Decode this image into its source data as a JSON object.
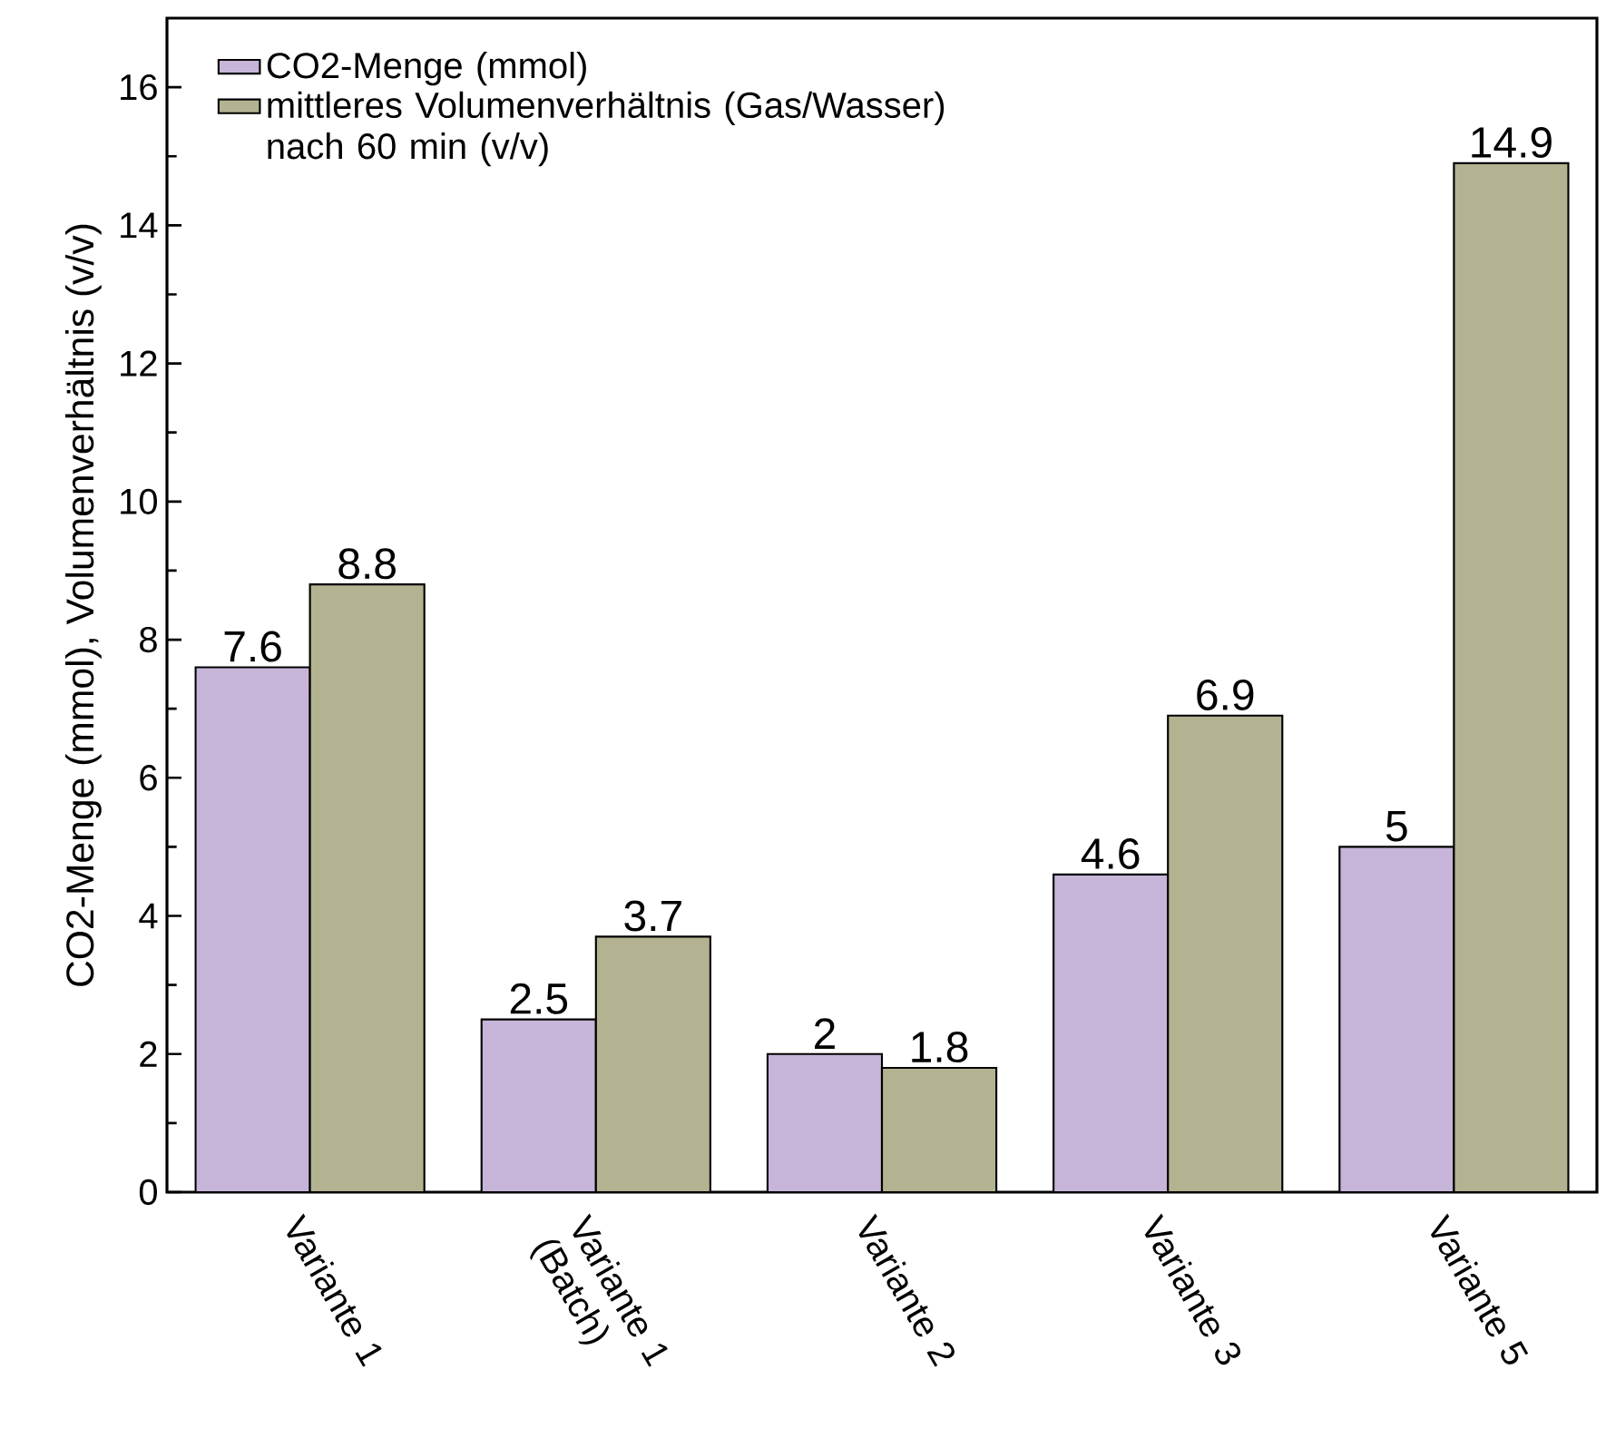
{
  "chart_data": {
    "type": "bar",
    "ylabel": "CO2-Menge (mmol), Volumenverhältnis (v/v)",
    "categories": [
      "Variante 1",
      "Variante 1 (Batch)",
      "Variante 2",
      "Variante 3",
      "Variante 5"
    ],
    "series": [
      {
        "name": "CO2-Menge (mmol)",
        "color": "#c6b5d9",
        "values": [
          7.6,
          2.5,
          2,
          4.6,
          5
        ]
      },
      {
        "name": "mittleres Volumenverhältnis (Gas/Wasser) nach 60 min (v/v)",
        "color": "#b3b392",
        "values": [
          8.8,
          3.7,
          1.8,
          6.9,
          14.9
        ]
      }
    ],
    "ylim": [
      0,
      17
    ],
    "yticks": [
      0,
      2,
      4,
      6,
      8,
      10,
      12,
      14,
      16
    ],
    "data_labels": true,
    "legend": "top left",
    "grid": false
  }
}
